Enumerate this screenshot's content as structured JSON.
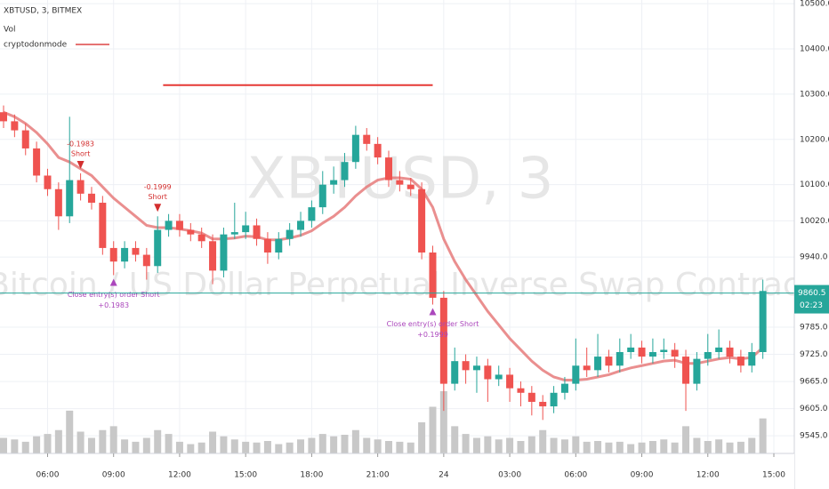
{
  "chart_data": {
    "type": "candlestick",
    "title": "XBTUSD, 3, BITMEX",
    "volume_label": "Vol",
    "indicator_label": "cryptodonmode",
    "watermark": "XBTUSD, 3",
    "subtitle": "Bitcoin / US Dollar Perpetual Inverse Swap Contract",
    "up_color": "#26a69a",
    "down_color": "#ef5350",
    "volume_color": "#c8c8c8",
    "xlim": [
      0,
      70
    ],
    "ylim": [
      9506,
      10508
    ],
    "xticks": [
      {
        "value": 4,
        "label": "06:00"
      },
      {
        "value": 10,
        "label": "09:00"
      },
      {
        "value": 16,
        "label": "12:00"
      },
      {
        "value": 22,
        "label": "15:00"
      },
      {
        "value": 28,
        "label": "18:00"
      },
      {
        "value": 34,
        "label": "21:00"
      },
      {
        "value": 40,
        "label": "24"
      },
      {
        "value": 46,
        "label": "03:00"
      },
      {
        "value": 52,
        "label": "06:00"
      },
      {
        "value": 58,
        "label": "09:00"
      },
      {
        "value": 64,
        "label": "12:00"
      },
      {
        "value": 70,
        "label": "15:00"
      }
    ],
    "yticks": [
      {
        "value": 10500,
        "label": "10500.0"
      },
      {
        "value": 10400,
        "label": "10400.0"
      },
      {
        "value": 10300,
        "label": "10300.0"
      },
      {
        "value": 10200,
        "label": "10200.0"
      },
      {
        "value": 10100,
        "label": "10100.0"
      },
      {
        "value": 10020,
        "label": "10020.0"
      },
      {
        "value": 9940,
        "label": "9940.0"
      },
      {
        "value": 9785,
        "label": "9785.0"
      },
      {
        "value": 9725,
        "label": "9725.0"
      },
      {
        "value": 9665,
        "label": "9665.0"
      },
      {
        "value": 9605,
        "label": "9605.0"
      },
      {
        "value": 9545,
        "label": "9545.0"
      }
    ],
    "grid": true,
    "candles": [
      [
        10260,
        10275,
        10225,
        10240
      ],
      [
        10240,
        10255,
        10205,
        10220
      ],
      [
        10220,
        10235,
        10165,
        10180
      ],
      [
        10180,
        10195,
        10105,
        10120
      ],
      [
        10120,
        10135,
        10075,
        10090
      ],
      [
        10090,
        10105,
        10000,
        10030
      ],
      [
        10030,
        10250,
        10015,
        10110
      ],
      [
        10110,
        10125,
        10065,
        10080
      ],
      [
        10080,
        10095,
        10045,
        10060
      ],
      [
        10060,
        10075,
        9945,
        9960
      ],
      [
        9960,
        9975,
        9900,
        9930
      ],
      [
        9930,
        9975,
        9915,
        9960
      ],
      [
        9960,
        9975,
        9930,
        9945
      ],
      [
        9945,
        9960,
        9890,
        9920
      ],
      [
        9920,
        10030,
        9905,
        10000
      ],
      [
        10000,
        10035,
        9985,
        10020
      ],
      [
        10020,
        10035,
        9985,
        10000
      ],
      [
        10000,
        10015,
        9975,
        9990
      ],
      [
        9990,
        10005,
        9960,
        9975
      ],
      [
        9975,
        9990,
        9880,
        9910
      ],
      [
        9910,
        10005,
        9895,
        9990
      ],
      [
        9990,
        10060,
        9980,
        9995
      ],
      [
        9995,
        10040,
        9980,
        10010
      ],
      [
        10010,
        10025,
        9965,
        9980
      ],
      [
        9980,
        9995,
        9925,
        9950
      ],
      [
        9950,
        9995,
        9935,
        9980
      ],
      [
        9980,
        10015,
        9965,
        10000
      ],
      [
        10000,
        10040,
        9985,
        10020
      ],
      [
        10020,
        10065,
        10005,
        10050
      ],
      [
        10050,
        10130,
        10035,
        10100
      ],
      [
        10100,
        10140,
        10080,
        10110
      ],
      [
        10110,
        10170,
        10095,
        10150
      ],
      [
        10150,
        10230,
        10135,
        10210
      ],
      [
        10210,
        10225,
        10175,
        10190
      ],
      [
        10190,
        10205,
        10145,
        10160
      ],
      [
        10160,
        10175,
        10095,
        10110
      ],
      [
        10110,
        10130,
        10085,
        10100
      ],
      [
        10100,
        10115,
        10075,
        10090
      ],
      [
        10090,
        10105,
        9935,
        9950
      ],
      [
        9950,
        9965,
        9835,
        9850
      ],
      [
        9850,
        9865,
        9600,
        9660
      ],
      [
        9660,
        9740,
        9645,
        9710
      ],
      [
        9710,
        9725,
        9660,
        9690
      ],
      [
        9690,
        9720,
        9640,
        9700
      ],
      [
        9700,
        9715,
        9620,
        9670
      ],
      [
        9670,
        9700,
        9655,
        9680
      ],
      [
        9680,
        9695,
        9620,
        9650
      ],
      [
        9650,
        9665,
        9610,
        9640
      ],
      [
        9640,
        9655,
        9590,
        9620
      ],
      [
        9620,
        9635,
        9580,
        9610
      ],
      [
        9610,
        9655,
        9595,
        9640
      ],
      [
        9640,
        9675,
        9625,
        9660
      ],
      [
        9660,
        9760,
        9645,
        9700
      ],
      [
        9700,
        9740,
        9675,
        9690
      ],
      [
        9690,
        9770,
        9675,
        9720
      ],
      [
        9720,
        9735,
        9685,
        9700
      ],
      [
        9700,
        9760,
        9685,
        9730
      ],
      [
        9730,
        9770,
        9715,
        9740
      ],
      [
        9740,
        9755,
        9705,
        9720
      ],
      [
        9720,
        9760,
        9705,
        9730
      ],
      [
        9730,
        9760,
        9715,
        9735
      ],
      [
        9735,
        9750,
        9695,
        9720
      ],
      [
        9720,
        9735,
        9600,
        9660
      ],
      [
        9660,
        9730,
        9645,
        9715
      ],
      [
        9715,
        9770,
        9700,
        9730
      ],
      [
        9730,
        9780,
        9715,
        9740
      ],
      [
        9740,
        9755,
        9705,
        9720
      ],
      [
        9720,
        9735,
        9685,
        9700
      ],
      [
        9700,
        9750,
        9685,
        9730
      ],
      [
        9730,
        9890,
        9715,
        9865
      ]
    ],
    "volume": [
      20,
      18,
      15,
      22,
      25,
      30,
      55,
      28,
      20,
      30,
      35,
      18,
      15,
      20,
      30,
      25,
      15,
      12,
      14,
      28,
      22,
      18,
      15,
      14,
      16,
      12,
      14,
      18,
      20,
      25,
      22,
      24,
      30,
      20,
      18,
      16,
      15,
      14,
      40,
      60,
      80,
      35,
      25,
      20,
      22,
      18,
      20,
      16,
      22,
      30,
      20,
      18,
      22,
      15,
      16,
      14,
      15,
      12,
      14,
      16,
      18,
      14,
      35,
      20,
      16,
      18,
      14,
      15,
      20,
      45
    ],
    "ma": {
      "color": "#e57373",
      "values": [
        10260,
        10250,
        10235,
        10215,
        10190,
        10160,
        10150,
        10135,
        10120,
        10095,
        10070,
        10050,
        10030,
        10010,
        10005,
        10005,
        10002,
        9998,
        9993,
        9980,
        9980,
        9982,
        9986,
        9985,
        9978,
        9978,
        9982,
        9988,
        9998,
        10015,
        10030,
        10050,
        10075,
        10095,
        10110,
        10115,
        10115,
        10112,
        10090,
        10050,
        9980,
        9930,
        9890,
        9855,
        9820,
        9790,
        9760,
        9735,
        9710,
        9690,
        9675,
        9668,
        9668,
        9670,
        9675,
        9680,
        9688,
        9695,
        9700,
        9705,
        9710,
        9712,
        9705,
        9705,
        9710,
        9715,
        9718,
        9715,
        9718,
        9740
      ]
    },
    "drawn_line": {
      "value": 10320,
      "from": 14.5,
      "to": 39,
      "color": "#e53935"
    },
    "entries": [
      {
        "pnl": -0.1983,
        "side": "Short",
        "at": 7
      },
      {
        "pnl": -0.1999,
        "side": "Short",
        "at": 14
      }
    ],
    "exits": [
      {
        "text": "Close entry(s) order Short",
        "pnl": {
          "value": 0.1983,
          "label": "+0.1983"
        },
        "at": 10
      },
      {
        "text": "Close entry(s) order Short",
        "pnl": {
          "value": 0.1999,
          "label": "+0.1999"
        },
        "at": 39
      }
    ],
    "last_price": 9860.5,
    "countdown": "02:23"
  }
}
